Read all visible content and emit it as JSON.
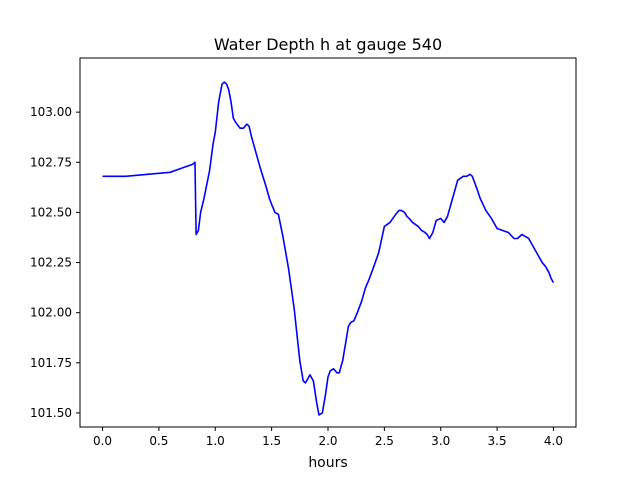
{
  "chart_data": {
    "type": "line",
    "title": "Water Depth h at gauge 540",
    "xlabel": "hours",
    "ylabel": "",
    "xlim": [
      -0.2,
      4.2
    ],
    "ylim": [
      101.43,
      103.27
    ],
    "x_ticks": [
      0.0,
      0.5,
      1.0,
      1.5,
      2.0,
      2.5,
      3.0,
      3.5,
      4.0
    ],
    "x_tick_labels": [
      "0.0",
      "0.5",
      "1.0",
      "1.5",
      "2.0",
      "2.5",
      "3.0",
      "3.5",
      "4.0"
    ],
    "y_ticks": [
      101.5,
      101.75,
      102.0,
      102.25,
      102.5,
      102.75,
      103.0
    ],
    "y_tick_labels": [
      "101.50",
      "101.75",
      "102.00",
      "102.25",
      "102.50",
      "102.75",
      "103.00"
    ],
    "grid": false,
    "legend": "none",
    "series": [
      {
        "color": "#0000ff",
        "x": [
          0.0,
          0.2,
          0.4,
          0.6,
          0.7,
          0.8,
          0.82,
          0.83,
          0.85,
          0.87,
          0.9,
          0.95,
          0.98,
          1.0,
          1.03,
          1.06,
          1.08,
          1.1,
          1.12,
          1.14,
          1.16,
          1.18,
          1.22,
          1.25,
          1.28,
          1.3,
          1.32,
          1.35,
          1.4,
          1.45,
          1.48,
          1.5,
          1.53,
          1.56,
          1.6,
          1.65,
          1.7,
          1.75,
          1.78,
          1.8,
          1.82,
          1.84,
          1.87,
          1.9,
          1.92,
          1.95,
          1.98,
          2.0,
          2.02,
          2.05,
          2.08,
          2.1,
          2.13,
          2.16,
          2.18,
          2.2,
          2.23,
          2.26,
          2.3,
          2.33,
          2.36,
          2.4,
          2.45,
          2.5,
          2.55,
          2.6,
          2.63,
          2.65,
          2.68,
          2.7,
          2.72,
          2.75,
          2.8,
          2.83,
          2.86,
          2.88,
          2.9,
          2.93,
          2.96,
          3.0,
          3.03,
          3.06,
          3.08,
          3.1,
          3.15,
          3.2,
          3.23,
          3.26,
          3.28,
          3.3,
          3.32,
          3.35,
          3.4,
          3.45,
          3.5,
          3.55,
          3.6,
          3.65,
          3.68,
          3.7,
          3.72,
          3.75,
          3.78,
          3.8,
          3.83,
          3.86,
          3.9,
          3.93,
          3.96,
          3.98,
          4.0
        ],
        "y": [
          102.68,
          102.68,
          102.69,
          102.7,
          102.72,
          102.74,
          102.75,
          102.39,
          102.41,
          102.5,
          102.57,
          102.71,
          102.84,
          102.9,
          103.05,
          103.14,
          103.15,
          103.14,
          103.11,
          103.05,
          102.97,
          102.95,
          102.92,
          102.92,
          102.94,
          102.93,
          102.88,
          102.82,
          102.72,
          102.63,
          102.57,
          102.54,
          102.5,
          102.49,
          102.38,
          102.22,
          102.02,
          101.76,
          101.66,
          101.65,
          101.67,
          101.69,
          101.66,
          101.55,
          101.49,
          101.5,
          101.6,
          101.68,
          101.71,
          101.72,
          101.7,
          101.7,
          101.76,
          101.86,
          101.93,
          101.95,
          101.96,
          102.0,
          102.06,
          102.12,
          102.16,
          102.22,
          102.3,
          102.43,
          102.45,
          102.49,
          102.51,
          102.51,
          102.5,
          102.48,
          102.47,
          102.45,
          102.43,
          102.41,
          102.4,
          102.39,
          102.37,
          102.4,
          102.46,
          102.47,
          102.45,
          102.48,
          102.52,
          102.56,
          102.66,
          102.68,
          102.68,
          102.69,
          102.68,
          102.65,
          102.62,
          102.57,
          102.51,
          102.47,
          102.42,
          102.41,
          102.4,
          102.37,
          102.37,
          102.38,
          102.39,
          102.38,
          102.37,
          102.35,
          102.32,
          102.29,
          102.25,
          102.23,
          102.2,
          102.17,
          102.15
        ]
      }
    ]
  }
}
